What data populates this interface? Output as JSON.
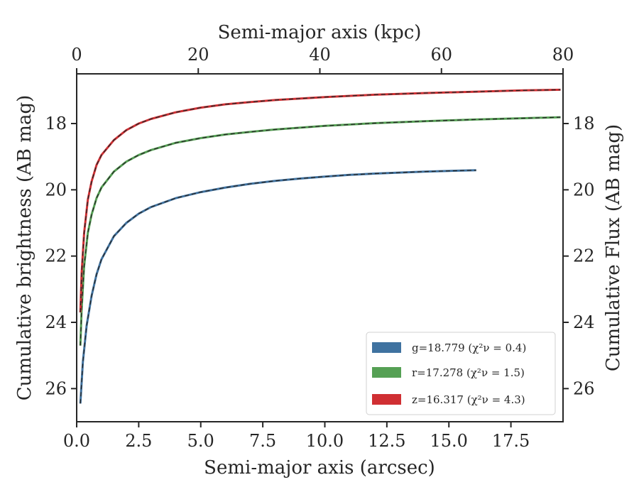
{
  "chart_data": {
    "type": "line",
    "xlabel": "Semi-major axis (arcsec)",
    "ylabel": "Cumulative brightness (AB mag)",
    "top_xlabel": "Semi-major axis (kpc)",
    "right_ylabel": "Cumulative Flux (AB mag)",
    "xlim": [
      0,
      19.6
    ],
    "ylim": [
      27.0,
      16.5
    ],
    "y_inverted": true,
    "top_xlim": [
      0,
      80
    ],
    "x_ticks": [
      "0.0",
      "2.5",
      "5.0",
      "7.5",
      "10.0",
      "12.5",
      "15.0",
      "17.5"
    ],
    "x_tick_values": [
      0,
      2.5,
      5,
      7.5,
      10,
      12.5,
      15,
      17.5
    ],
    "top_x_ticks": [
      "0",
      "20",
      "40",
      "60",
      "80"
    ],
    "top_x_tick_values": [
      0,
      20,
      40,
      60,
      80
    ],
    "y_ticks": [
      "18",
      "20",
      "22",
      "24",
      "26"
    ],
    "y_tick_values": [
      18,
      20,
      22,
      24,
      26
    ],
    "grid": false,
    "legend_position": "lower-right",
    "legend": [
      {
        "label": "g=18.779 (χ²ν = 0.4)",
        "color": "#3f72a0"
      },
      {
        "label": "r=17.278 (χ²ν = 1.5)",
        "color": "#55a054"
      },
      {
        "label": "z=16.317 (χ²ν = 4.3)",
        "color": "#d02f33"
      }
    ],
    "series": [
      {
        "name": "g",
        "color": "#3f72a0",
        "x": [
          0.15,
          0.25,
          0.4,
          0.6,
          0.8,
          1.0,
          1.5,
          2.0,
          2.5,
          3.0,
          4.0,
          5.0,
          6.0,
          7.0,
          8.0,
          9.0,
          10.0,
          11.0,
          12.0,
          13.0,
          14.0,
          15.0,
          16.1
        ],
        "y": [
          26.45,
          25.2,
          24.1,
          23.2,
          22.55,
          22.1,
          21.4,
          21.0,
          20.72,
          20.52,
          20.25,
          20.07,
          19.93,
          19.82,
          19.73,
          19.66,
          19.6,
          19.55,
          19.51,
          19.48,
          19.45,
          19.43,
          19.41
        ]
      },
      {
        "name": "r",
        "color": "#55a054",
        "x": [
          0.15,
          0.2,
          0.3,
          0.45,
          0.6,
          0.8,
          1.0,
          1.5,
          2.0,
          2.5,
          3.0,
          4.0,
          5.0,
          6.0,
          7.0,
          8.0,
          10.0,
          12.0,
          14.0,
          16.0,
          18.0,
          19.5
        ],
        "y": [
          24.7,
          23.6,
          22.3,
          21.3,
          20.75,
          20.25,
          19.93,
          19.45,
          19.15,
          18.95,
          18.8,
          18.58,
          18.44,
          18.33,
          18.25,
          18.18,
          18.07,
          17.99,
          17.93,
          17.88,
          17.84,
          17.81
        ]
      },
      {
        "name": "z",
        "color": "#d02f33",
        "x": [
          0.15,
          0.2,
          0.3,
          0.45,
          0.6,
          0.8,
          1.0,
          1.5,
          2.0,
          2.5,
          3.0,
          4.0,
          5.0,
          6.0,
          7.0,
          8.0,
          10.0,
          12.0,
          14.0,
          16.0,
          18.0,
          19.5
        ],
        "y": [
          23.7,
          22.5,
          21.3,
          20.3,
          19.75,
          19.25,
          18.95,
          18.5,
          18.2,
          18.0,
          17.86,
          17.66,
          17.52,
          17.42,
          17.35,
          17.29,
          17.2,
          17.13,
          17.08,
          17.04,
          17.0,
          16.98
        ]
      }
    ]
  }
}
